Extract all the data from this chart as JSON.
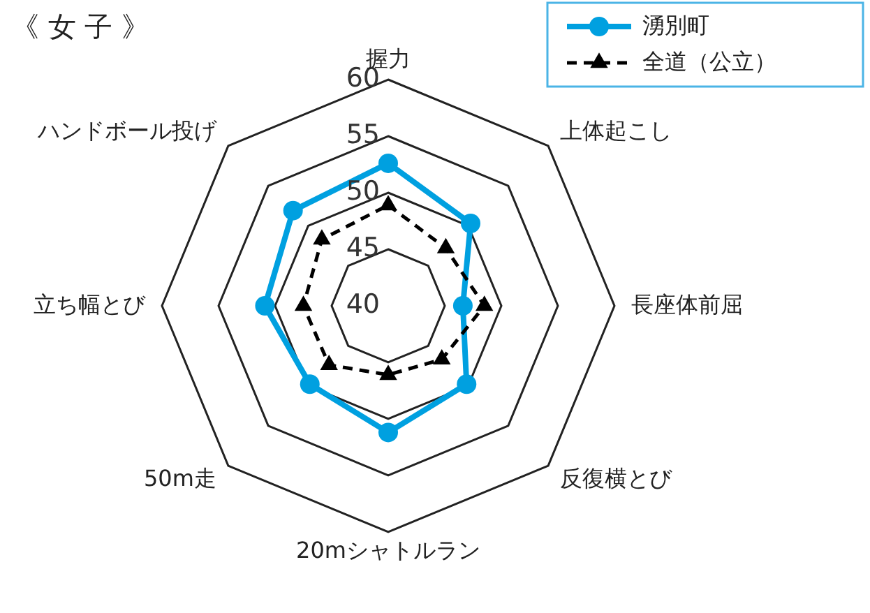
{
  "chart_data": {
    "type": "radar",
    "title": "《 女 子 》",
    "categories": [
      "握力",
      "上体起こし",
      "長座体前屈",
      "反復横とび",
      "20mシャトルラン",
      "50m走",
      "立ち幅とび",
      "ハンドボール投げ"
    ],
    "ylim": [
      40,
      60
    ],
    "yticks": [
      40,
      45,
      50,
      55,
      60
    ],
    "legend": "top right",
    "series": [
      {
        "name": "湧別町",
        "color": "#00a0e0",
        "marker": "circle",
        "line_style": "solid",
        "values": [
          52.6,
          50.3,
          46.6,
          49.8,
          51.2,
          49.8,
          50.9,
          51.9
        ]
      },
      {
        "name": "全道（公立）",
        "color": "#000000",
        "marker": "triangle",
        "line_style": "dashed",
        "values": [
          48.9,
          47.2,
          48.5,
          46.7,
          46.1,
          47.4,
          47.5,
          48.3
        ]
      }
    ]
  }
}
